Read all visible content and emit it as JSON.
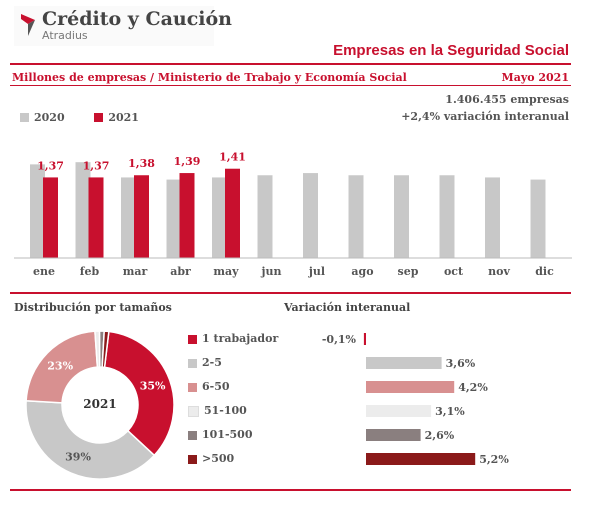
{
  "header": {
    "brand": "Crédito y Caución",
    "brand_sub": "Atradius",
    "title": "Empresas en la Seguridad Social",
    "subtitle": "Millones de empresas / Ministerio de Trabajo y Economía Social",
    "date": "Mayo 2021",
    "total": "1.406.455 empresas",
    "variation": "+2,4% variación interanual"
  },
  "colors": {
    "accent": "#c8102e",
    "gray": "#c8c8c8"
  },
  "chart_data": [
    {
      "type": "bar",
      "categories": [
        "ene",
        "feb",
        "mar",
        "abr",
        "may",
        "jun",
        "jul",
        "ago",
        "sep",
        "oct",
        "nov",
        "dic"
      ],
      "series": [
        {
          "name": "2020",
          "color": "#c8c8c8",
          "values": [
            1.43,
            1.44,
            1.37,
            1.36,
            1.37,
            1.38,
            1.39,
            1.38,
            1.38,
            1.38,
            1.37,
            1.36
          ]
        },
        {
          "name": "2021",
          "color": "#c8102e",
          "values": [
            1.37,
            1.37,
            1.38,
            1.39,
            1.41,
            null,
            null,
            null,
            null,
            null,
            null,
            null
          ]
        }
      ],
      "data_labels": [
        "1,37",
        "1,37",
        "1,38",
        "1,39",
        "1,41"
      ],
      "legend": "top-left"
    },
    {
      "type": "pie",
      "title": "Distribución por tamaños",
      "center_label": "2021",
      "categories": [
        "1 trabajador",
        "2-5",
        "6-50",
        "51-100",
        "101-500",
        ">500"
      ],
      "values": [
        35,
        39,
        23,
        1,
        1,
        1
      ],
      "colors": [
        "#c8102e",
        "#c8c8c8",
        "#d89090",
        "#ececec",
        "#8a7f7f",
        "#8b1a1a"
      ],
      "slice_labels": [
        "35%",
        "39%",
        "23%",
        "",
        "",
        ""
      ]
    },
    {
      "type": "bar",
      "orientation": "horizontal",
      "title": "Variación interanual",
      "categories": [
        "1 trabajador",
        "2-5",
        "6-50",
        "51-100",
        "101-500",
        ">500"
      ],
      "values": [
        -0.1,
        3.6,
        4.2,
        3.1,
        2.6,
        5.2
      ],
      "labels": [
        "-0,1%",
        "3,6%",
        "4,2%",
        "3,1%",
        "2,6%",
        "5,2%"
      ],
      "colors": [
        "#c8102e",
        "#c8c8c8",
        "#d89090",
        "#ececec",
        "#8a7f7f",
        "#8b1a1a"
      ]
    }
  ],
  "sections": {
    "dist_title": "Distribución por tamaños",
    "var_title": "Variación interanual"
  }
}
